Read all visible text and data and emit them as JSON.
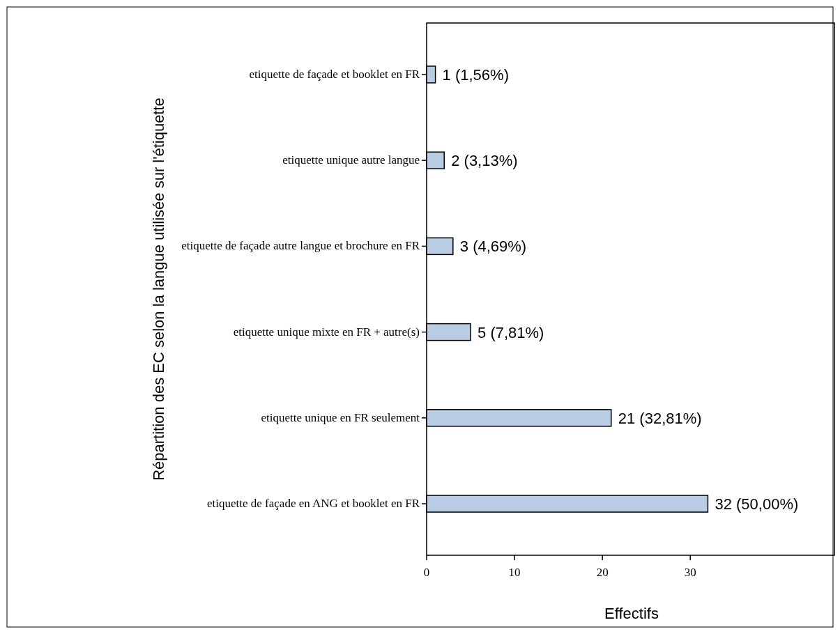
{
  "chart_data": {
    "type": "bar",
    "orientation": "horizontal",
    "ylabel": "Répartition des EC selon la langue utilisée sur l'étiquette",
    "xlabel": "Effectifs",
    "categories": [
      "etiquette de façade et booklet en FR",
      "etiquette unique autre langue",
      "etiquette de façade autre langue et brochure en FR",
      "etiquette unique mixte en FR + autre(s)",
      "etiquette unique en FR seulement",
      "etiquette de façade en ANG et booklet en FR"
    ],
    "values": [
      1,
      2,
      3,
      5,
      21,
      32
    ],
    "value_labels": [
      "1 (1,56%)",
      "2 (3,13%)",
      "3 (4,69%)",
      "5 (7,81%)",
      "21 (32,81%)",
      "32 (50,00%)"
    ],
    "color": "#b8cce4",
    "xlim": [
      0,
      46.4
    ],
    "xticks": [
      0,
      10,
      20,
      30
    ],
    "grid": false
  }
}
